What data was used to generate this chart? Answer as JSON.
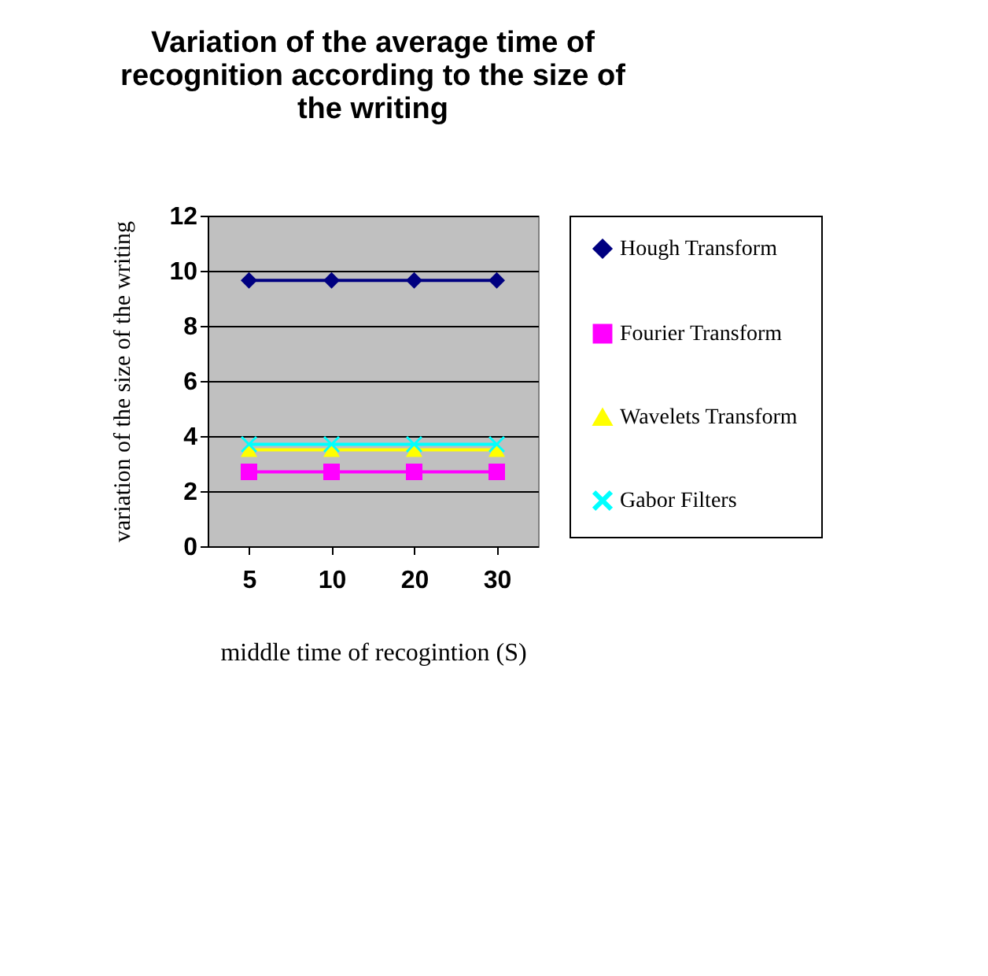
{
  "chart_data": {
    "type": "line",
    "title": "Variation of the average time of recognition according to the size of the writing",
    "xlabel": "middle time of recogintion (S)",
    "ylabel": "variation of the size of the writing",
    "categories": [
      "5",
      "10",
      "20",
      "30"
    ],
    "series": [
      {
        "name": "Hough Transform",
        "color": "#000080",
        "marker": "diamond",
        "values": [
          9.65,
          9.65,
          9.65,
          9.65
        ]
      },
      {
        "name": "Fourier Transform",
        "color": "#ff00ff",
        "marker": "square",
        "values": [
          2.7,
          2.7,
          2.7,
          2.7
        ]
      },
      {
        "name": "Wavelets Transform",
        "color": "#ffff00",
        "marker": "triangle",
        "values": [
          3.5,
          3.5,
          3.5,
          3.5
        ]
      },
      {
        "name": "Gabor Filters",
        "color": "#00ffff",
        "marker": "cross",
        "values": [
          3.7,
          3.7,
          3.7,
          3.7
        ]
      }
    ],
    "ylim": [
      0,
      12
    ],
    "yticks": [
      0,
      2,
      4,
      6,
      8,
      10,
      12
    ],
    "grid": "y",
    "legend": "right",
    "line_style": "solid"
  }
}
